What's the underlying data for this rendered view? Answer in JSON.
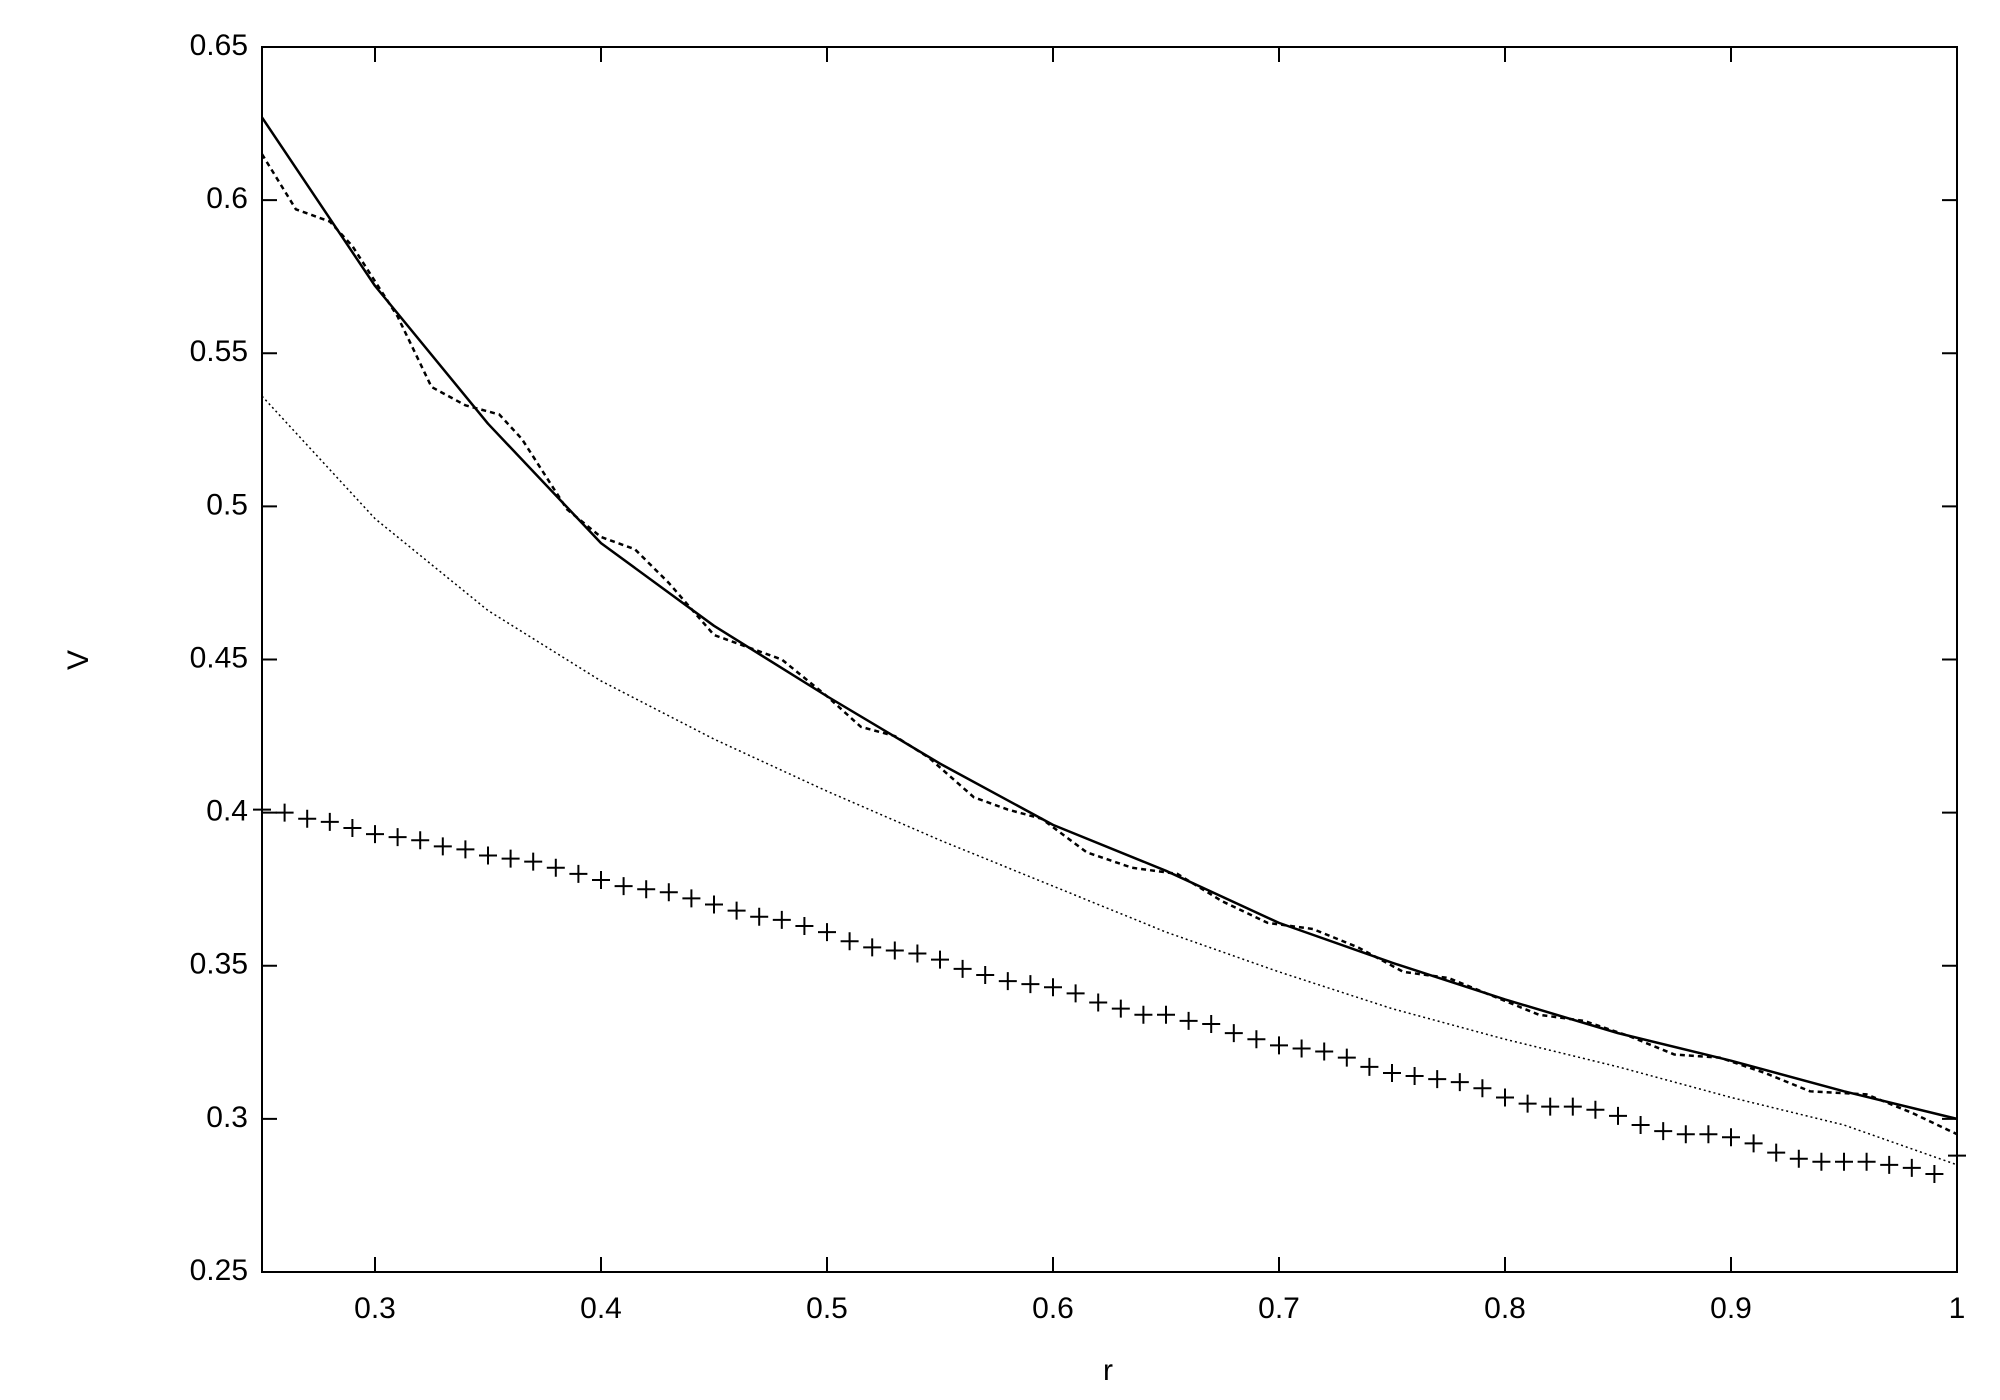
{
  "chart_data": {
    "type": "line",
    "xlabel": "r",
    "ylabel": "V",
    "xlim": [
      0.25,
      1
    ],
    "ylim": [
      0.25,
      0.65
    ],
    "xticks": [
      0.3,
      0.4,
      0.5,
      0.6,
      0.7,
      0.8,
      0.9,
      1
    ],
    "yticks": [
      0.25,
      0.3,
      0.35,
      0.4,
      0.45,
      0.5,
      0.55,
      0.6,
      0.65
    ],
    "series": [
      {
        "color": "#000000",
        "line_style": "solid",
        "x": [
          0.25,
          0.3,
          0.35,
          0.4,
          0.45,
          0.5,
          0.55,
          0.6,
          0.65,
          0.7,
          0.75,
          0.8,
          0.85,
          0.9,
          0.95,
          1.0
        ],
        "values": [
          0.627,
          0.572,
          0.527,
          0.488,
          0.461,
          0.438,
          0.416,
          0.396,
          0.381,
          0.364,
          0.351,
          0.339,
          0.328,
          0.319,
          0.309,
          0.3
        ]
      },
      {
        "color": "#000000",
        "line_style": "dashed",
        "x": [
          0.25,
          0.265,
          0.28,
          0.29,
          0.31,
          0.325,
          0.34,
          0.355,
          0.365,
          0.385,
          0.4,
          0.415,
          0.43,
          0.45,
          0.465,
          0.48,
          0.5,
          0.515,
          0.53,
          0.545,
          0.565,
          0.58,
          0.595,
          0.615,
          0.635,
          0.655,
          0.675,
          0.695,
          0.715,
          0.735,
          0.755,
          0.775,
          0.795,
          0.815,
          0.835,
          0.855,
          0.875,
          0.895,
          0.915,
          0.935,
          0.96,
          0.98,
          1.0
        ],
        "values": [
          0.615,
          0.597,
          0.593,
          0.585,
          0.562,
          0.539,
          0.533,
          0.53,
          0.522,
          0.499,
          0.49,
          0.486,
          0.475,
          0.458,
          0.454,
          0.45,
          0.438,
          0.428,
          0.425,
          0.418,
          0.405,
          0.401,
          0.398,
          0.387,
          0.382,
          0.38,
          0.371,
          0.364,
          0.362,
          0.356,
          0.348,
          0.346,
          0.34,
          0.334,
          0.332,
          0.327,
          0.321,
          0.32,
          0.315,
          0.309,
          0.308,
          0.302,
          0.295
        ]
      },
      {
        "color": "#000000",
        "line_style": "dotted",
        "x": [
          0.25,
          0.3,
          0.35,
          0.4,
          0.45,
          0.5,
          0.55,
          0.6,
          0.65,
          0.7,
          0.75,
          0.8,
          0.85,
          0.9,
          0.95,
          1.0
        ],
        "values": [
          0.536,
          0.496,
          0.466,
          0.443,
          0.424,
          0.407,
          0.391,
          0.376,
          0.361,
          0.348,
          0.336,
          0.326,
          0.317,
          0.307,
          0.298,
          0.285
        ]
      },
      {
        "color": "#000000",
        "marker": "+",
        "x": [
          0.25,
          0.26,
          0.27,
          0.28,
          0.29,
          0.3,
          0.31,
          0.32,
          0.33,
          0.34,
          0.35,
          0.36,
          0.37,
          0.38,
          0.39,
          0.4,
          0.41,
          0.42,
          0.43,
          0.44,
          0.45,
          0.46,
          0.47,
          0.48,
          0.49,
          0.5,
          0.51,
          0.52,
          0.53,
          0.54,
          0.55,
          0.56,
          0.57,
          0.58,
          0.59,
          0.6,
          0.61,
          0.62,
          0.63,
          0.64,
          0.65,
          0.66,
          0.67,
          0.68,
          0.69,
          0.7,
          0.71,
          0.72,
          0.73,
          0.74,
          0.75,
          0.76,
          0.77,
          0.78,
          0.79,
          0.8,
          0.81,
          0.82,
          0.83,
          0.84,
          0.85,
          0.86,
          0.87,
          0.88,
          0.89,
          0.9,
          0.91,
          0.92,
          0.93,
          0.94,
          0.95,
          0.96,
          0.97,
          0.98,
          0.99,
          1.0
        ],
        "values": [
          0.401,
          0.4,
          0.398,
          0.397,
          0.395,
          0.393,
          0.392,
          0.391,
          0.389,
          0.388,
          0.386,
          0.385,
          0.384,
          0.382,
          0.38,
          0.378,
          0.376,
          0.375,
          0.374,
          0.372,
          0.37,
          0.368,
          0.366,
          0.365,
          0.363,
          0.361,
          0.358,
          0.356,
          0.355,
          0.354,
          0.352,
          0.349,
          0.347,
          0.345,
          0.344,
          0.343,
          0.341,
          0.338,
          0.336,
          0.334,
          0.334,
          0.332,
          0.331,
          0.328,
          0.326,
          0.324,
          0.323,
          0.322,
          0.32,
          0.317,
          0.315,
          0.314,
          0.313,
          0.312,
          0.31,
          0.307,
          0.305,
          0.304,
          0.304,
          0.303,
          0.301,
          0.298,
          0.296,
          0.295,
          0.295,
          0.294,
          0.292,
          0.289,
          0.287,
          0.286,
          0.286,
          0.286,
          0.285,
          0.284,
          0.282,
          0.288
        ]
      }
    ]
  }
}
